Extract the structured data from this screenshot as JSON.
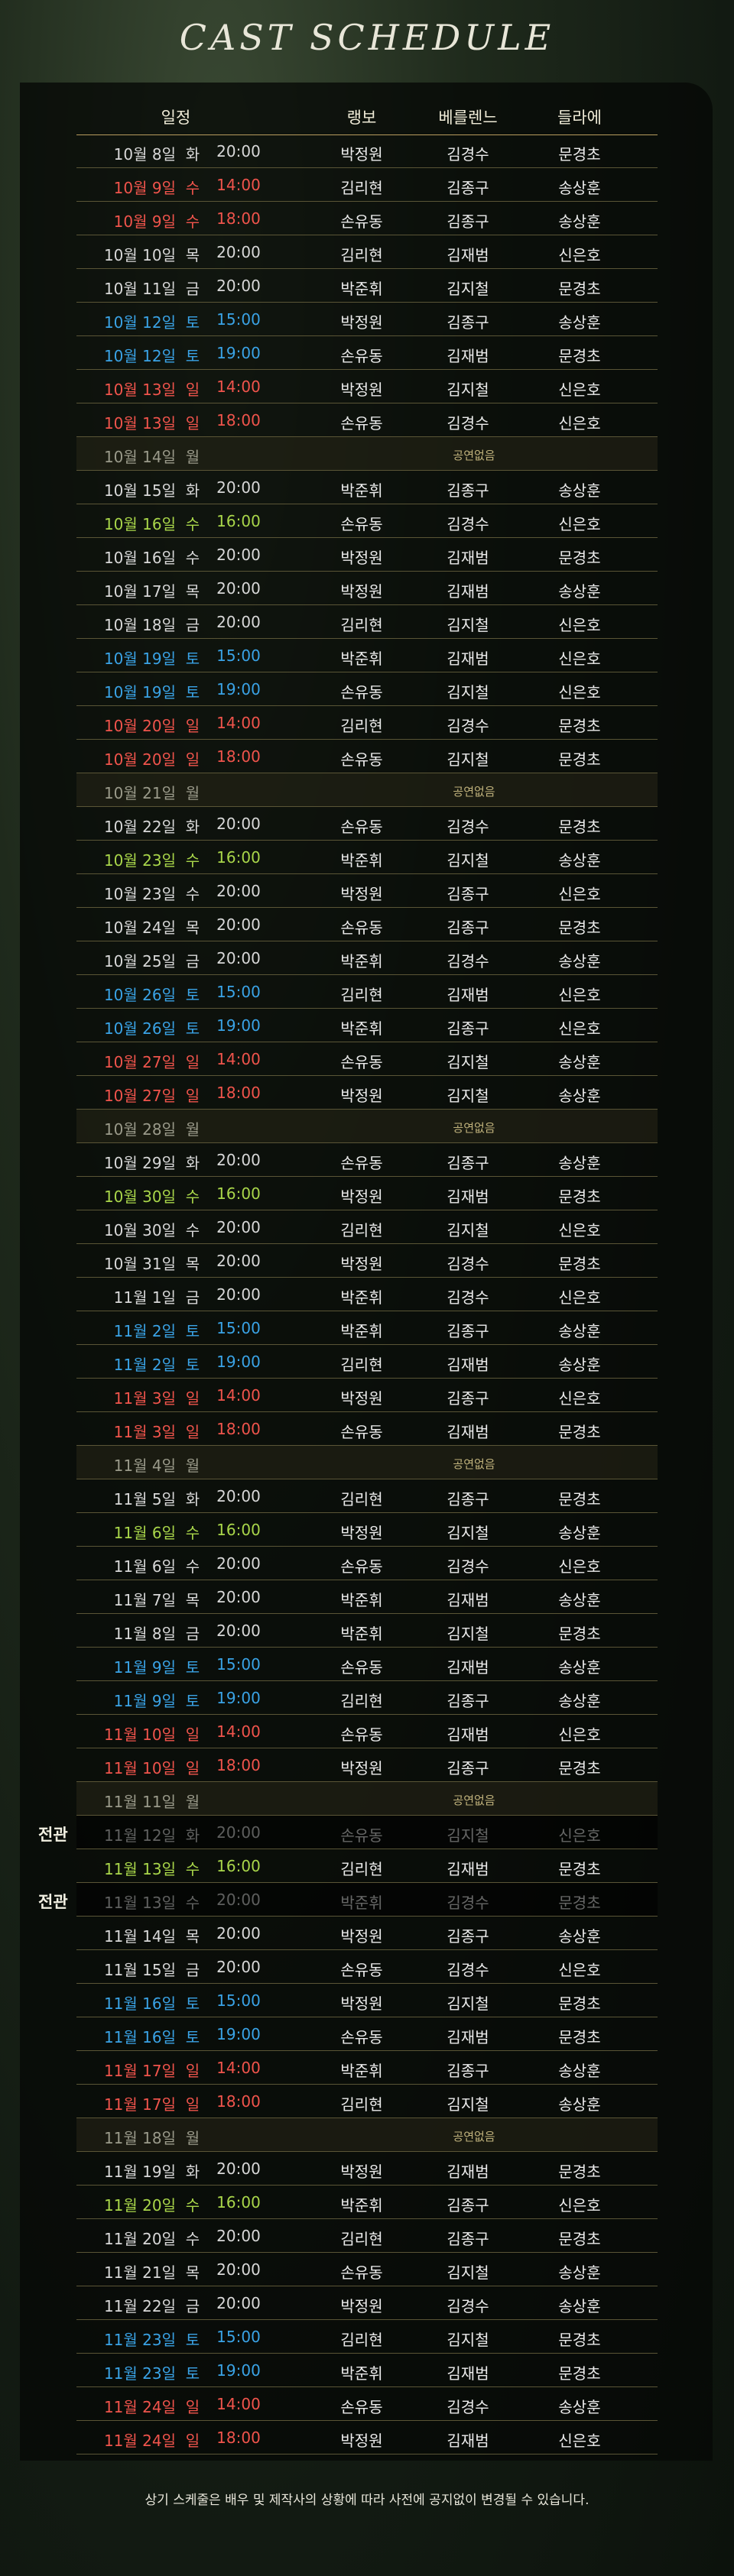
{
  "title": "CAST SCHEDULE",
  "headers": {
    "schedule": "일정",
    "col_a": "랭보",
    "col_b": "베를렌느",
    "col_c": "들라에"
  },
  "sold_out_label": "전관",
  "off_label": "공연없음",
  "footer": "상기 스케줄은 배우 및 제작사의 상황에 따라 사전에 공지없이 변경될 수 있습니다.",
  "rows": [
    {
      "date": "10월 8일",
      "day": "화",
      "time": "20:00",
      "a": "박정원",
      "b": "김경수",
      "c": "문경초",
      "type": "w"
    },
    {
      "date": "10월 9일",
      "day": "수",
      "time": "14:00",
      "a": "김리현",
      "b": "김종구",
      "c": "송상훈",
      "type": "sun"
    },
    {
      "date": "10월 9일",
      "day": "수",
      "time": "18:00",
      "a": "손유동",
      "b": "김종구",
      "c": "송상훈",
      "type": "sun"
    },
    {
      "date": "10월 10일",
      "day": "목",
      "time": "20:00",
      "a": "김리현",
      "b": "김재범",
      "c": "신은호",
      "type": "w"
    },
    {
      "date": "10월 11일",
      "day": "금",
      "time": "20:00",
      "a": "박준휘",
      "b": "김지철",
      "c": "문경초",
      "type": "w"
    },
    {
      "date": "10월 12일",
      "day": "토",
      "time": "15:00",
      "a": "박정원",
      "b": "김종구",
      "c": "송상훈",
      "type": "sat"
    },
    {
      "date": "10월 12일",
      "day": "토",
      "time": "19:00",
      "a": "손유동",
      "b": "김재범",
      "c": "문경초",
      "type": "sat"
    },
    {
      "date": "10월 13일",
      "day": "일",
      "time": "14:00",
      "a": "박정원",
      "b": "김지철",
      "c": "신은호",
      "type": "sun"
    },
    {
      "date": "10월 13일",
      "day": "일",
      "time": "18:00",
      "a": "손유동",
      "b": "김경수",
      "c": "신은호",
      "type": "sun"
    },
    {
      "date": "10월 14일",
      "day": "월",
      "type": "off"
    },
    {
      "date": "10월 15일",
      "day": "화",
      "time": "20:00",
      "a": "박준휘",
      "b": "김종구",
      "c": "송상훈",
      "type": "w"
    },
    {
      "date": "10월 16일",
      "day": "수",
      "time": "16:00",
      "a": "손유동",
      "b": "김경수",
      "c": "신은호",
      "type": "mat"
    },
    {
      "date": "10월 16일",
      "day": "수",
      "time": "20:00",
      "a": "박정원",
      "b": "김재범",
      "c": "문경초",
      "type": "w"
    },
    {
      "date": "10월 17일",
      "day": "목",
      "time": "20:00",
      "a": "박정원",
      "b": "김재범",
      "c": "송상훈",
      "type": "w"
    },
    {
      "date": "10월 18일",
      "day": "금",
      "time": "20:00",
      "a": "김리현",
      "b": "김지철",
      "c": "신은호",
      "type": "w"
    },
    {
      "date": "10월 19일",
      "day": "토",
      "time": "15:00",
      "a": "박준휘",
      "b": "김재범",
      "c": "신은호",
      "type": "sat"
    },
    {
      "date": "10월 19일",
      "day": "토",
      "time": "19:00",
      "a": "손유동",
      "b": "김지철",
      "c": "신은호",
      "type": "sat"
    },
    {
      "date": "10월 20일",
      "day": "일",
      "time": "14:00",
      "a": "김리현",
      "b": "김경수",
      "c": "문경초",
      "type": "sun"
    },
    {
      "date": "10월 20일",
      "day": "일",
      "time": "18:00",
      "a": "손유동",
      "b": "김지철",
      "c": "문경초",
      "type": "sun"
    },
    {
      "date": "10월 21일",
      "day": "월",
      "type": "off"
    },
    {
      "date": "10월 22일",
      "day": "화",
      "time": "20:00",
      "a": "손유동",
      "b": "김경수",
      "c": "문경초",
      "type": "w"
    },
    {
      "date": "10월 23일",
      "day": "수",
      "time": "16:00",
      "a": "박준휘",
      "b": "김지철",
      "c": "송상훈",
      "type": "mat"
    },
    {
      "date": "10월 23일",
      "day": "수",
      "time": "20:00",
      "a": "박정원",
      "b": "김종구",
      "c": "신은호",
      "type": "w"
    },
    {
      "date": "10월 24일",
      "day": "목",
      "time": "20:00",
      "a": "손유동",
      "b": "김종구",
      "c": "문경초",
      "type": "w"
    },
    {
      "date": "10월 25일",
      "day": "금",
      "time": "20:00",
      "a": "박준휘",
      "b": "김경수",
      "c": "송상훈",
      "type": "w"
    },
    {
      "date": "10월 26일",
      "day": "토",
      "time": "15:00",
      "a": "김리현",
      "b": "김재범",
      "c": "신은호",
      "type": "sat"
    },
    {
      "date": "10월 26일",
      "day": "토",
      "time": "19:00",
      "a": "박준휘",
      "b": "김종구",
      "c": "신은호",
      "type": "sat"
    },
    {
      "date": "10월 27일",
      "day": "일",
      "time": "14:00",
      "a": "손유동",
      "b": "김지철",
      "c": "송상훈",
      "type": "sun"
    },
    {
      "date": "10월 27일",
      "day": "일",
      "time": "18:00",
      "a": "박정원",
      "b": "김지철",
      "c": "송상훈",
      "type": "sun"
    },
    {
      "date": "10월 28일",
      "day": "월",
      "type": "off"
    },
    {
      "date": "10월 29일",
      "day": "화",
      "time": "20:00",
      "a": "손유동",
      "b": "김종구",
      "c": "송상훈",
      "type": "w"
    },
    {
      "date": "10월 30일",
      "day": "수",
      "time": "16:00",
      "a": "박정원",
      "b": "김재범",
      "c": "문경초",
      "type": "mat"
    },
    {
      "date": "10월 30일",
      "day": "수",
      "time": "20:00",
      "a": "김리현",
      "b": "김지철",
      "c": "신은호",
      "type": "w"
    },
    {
      "date": "10월 31일",
      "day": "목",
      "time": "20:00",
      "a": "박정원",
      "b": "김경수",
      "c": "문경초",
      "type": "w"
    },
    {
      "date": "11월 1일",
      "day": "금",
      "time": "20:00",
      "a": "박준휘",
      "b": "김경수",
      "c": "신은호",
      "type": "w"
    },
    {
      "date": "11월 2일",
      "day": "토",
      "time": "15:00",
      "a": "박준휘",
      "b": "김종구",
      "c": "송상훈",
      "type": "sat"
    },
    {
      "date": "11월 2일",
      "day": "토",
      "time": "19:00",
      "a": "김리현",
      "b": "김재범",
      "c": "송상훈",
      "type": "sat"
    },
    {
      "date": "11월 3일",
      "day": "일",
      "time": "14:00",
      "a": "박정원",
      "b": "김종구",
      "c": "신은호",
      "type": "sun"
    },
    {
      "date": "11월 3일",
      "day": "일",
      "time": "18:00",
      "a": "손유동",
      "b": "김재범",
      "c": "문경초",
      "type": "sun"
    },
    {
      "date": "11월 4일",
      "day": "월",
      "type": "off"
    },
    {
      "date": "11월 5일",
      "day": "화",
      "time": "20:00",
      "a": "김리현",
      "b": "김종구",
      "c": "문경초",
      "type": "w"
    },
    {
      "date": "11월 6일",
      "day": "수",
      "time": "16:00",
      "a": "박정원",
      "b": "김지철",
      "c": "송상훈",
      "type": "mat"
    },
    {
      "date": "11월 6일",
      "day": "수",
      "time": "20:00",
      "a": "손유동",
      "b": "김경수",
      "c": "신은호",
      "type": "w"
    },
    {
      "date": "11월 7일",
      "day": "목",
      "time": "20:00",
      "a": "박준휘",
      "b": "김재범",
      "c": "송상훈",
      "type": "w"
    },
    {
      "date": "11월 8일",
      "day": "금",
      "time": "20:00",
      "a": "박준휘",
      "b": "김지철",
      "c": "문경초",
      "type": "w"
    },
    {
      "date": "11월 9일",
      "day": "토",
      "time": "15:00",
      "a": "손유동",
      "b": "김재범",
      "c": "송상훈",
      "type": "sat"
    },
    {
      "date": "11월 9일",
      "day": "토",
      "time": "19:00",
      "a": "김리현",
      "b": "김종구",
      "c": "송상훈",
      "type": "sat"
    },
    {
      "date": "11월 10일",
      "day": "일",
      "time": "14:00",
      "a": "손유동",
      "b": "김재범",
      "c": "신은호",
      "type": "sun"
    },
    {
      "date": "11월 10일",
      "day": "일",
      "time": "18:00",
      "a": "박정원",
      "b": "김종구",
      "c": "문경초",
      "type": "sun"
    },
    {
      "date": "11월 11일",
      "day": "월",
      "type": "off"
    },
    {
      "date": "11월 12일",
      "day": "화",
      "time": "20:00",
      "a": "손유동",
      "b": "김지철",
      "c": "신은호",
      "type": "dim",
      "sold": true
    },
    {
      "date": "11월 13일",
      "day": "수",
      "time": "16:00",
      "a": "김리현",
      "b": "김재범",
      "c": "문경초",
      "type": "mat"
    },
    {
      "date": "11월 13일",
      "day": "수",
      "time": "20:00",
      "a": "박준휘",
      "b": "김경수",
      "c": "문경초",
      "type": "dim",
      "sold": true
    },
    {
      "date": "11월 14일",
      "day": "목",
      "time": "20:00",
      "a": "박정원",
      "b": "김종구",
      "c": "송상훈",
      "type": "w"
    },
    {
      "date": "11월 15일",
      "day": "금",
      "time": "20:00",
      "a": "손유동",
      "b": "김경수",
      "c": "신은호",
      "type": "w"
    },
    {
      "date": "11월 16일",
      "day": "토",
      "time": "15:00",
      "a": "박정원",
      "b": "김지철",
      "c": "문경초",
      "type": "sat"
    },
    {
      "date": "11월 16일",
      "day": "토",
      "time": "19:00",
      "a": "손유동",
      "b": "김재범",
      "c": "문경초",
      "type": "sat"
    },
    {
      "date": "11월 17일",
      "day": "일",
      "time": "14:00",
      "a": "박준휘",
      "b": "김종구",
      "c": "송상훈",
      "type": "sun"
    },
    {
      "date": "11월 17일",
      "day": "일",
      "time": "18:00",
      "a": "김리현",
      "b": "김지철",
      "c": "송상훈",
      "type": "sun"
    },
    {
      "date": "11월 18일",
      "day": "월",
      "type": "off"
    },
    {
      "date": "11월 19일",
      "day": "화",
      "time": "20:00",
      "a": "박정원",
      "b": "김재범",
      "c": "문경초",
      "type": "w"
    },
    {
      "date": "11월 20일",
      "day": "수",
      "time": "16:00",
      "a": "박준휘",
      "b": "김종구",
      "c": "신은호",
      "type": "mat"
    },
    {
      "date": "11월 20일",
      "day": "수",
      "time": "20:00",
      "a": "김리현",
      "b": "김종구",
      "c": "문경초",
      "type": "w"
    },
    {
      "date": "11월 21일",
      "day": "목",
      "time": "20:00",
      "a": "손유동",
      "b": "김지철",
      "c": "송상훈",
      "type": "w"
    },
    {
      "date": "11월 22일",
      "day": "금",
      "time": "20:00",
      "a": "박정원",
      "b": "김경수",
      "c": "송상훈",
      "type": "w"
    },
    {
      "date": "11월 23일",
      "day": "토",
      "time": "15:00",
      "a": "김리현",
      "b": "김지철",
      "c": "문경초",
      "type": "sat"
    },
    {
      "date": "11월 23일",
      "day": "토",
      "time": "19:00",
      "a": "박준휘",
      "b": "김재범",
      "c": "문경초",
      "type": "sat"
    },
    {
      "date": "11월 24일",
      "day": "일",
      "time": "14:00",
      "a": "손유동",
      "b": "김경수",
      "c": "송상훈",
      "type": "sun"
    },
    {
      "date": "11월 24일",
      "day": "일",
      "time": "18:00",
      "a": "박정원",
      "b": "김재범",
      "c": "신은호",
      "type": "sun"
    }
  ]
}
